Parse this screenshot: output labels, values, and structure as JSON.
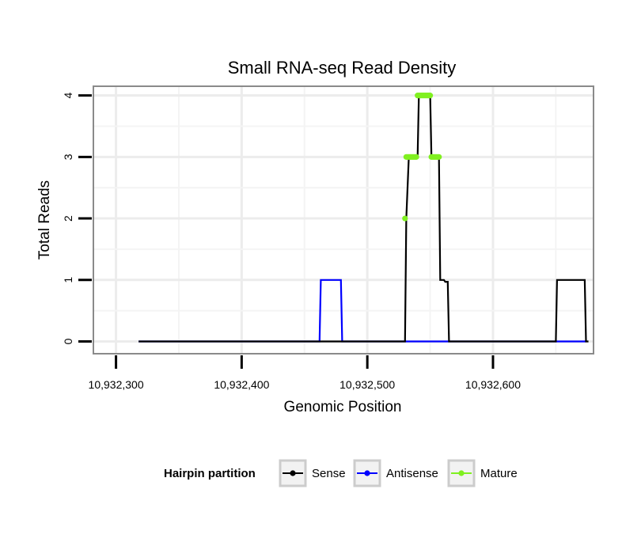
{
  "chart_data": {
    "type": "line",
    "title": "Small RNA-seq Read Density",
    "xlabel": "Genomic Position",
    "ylabel": "Total Reads",
    "xlim": [
      10932282,
      10932680
    ],
    "ylim": [
      -0.2,
      4.15
    ],
    "x_ticks": [
      10932300,
      10932400,
      10932500,
      10932600
    ],
    "x_tick_labels": [
      "10,932,300",
      "10,932,400",
      "10,932,500",
      "10,932,600"
    ],
    "x_minor_gridlines": [
      10932350,
      10932450,
      10932550,
      10932650
    ],
    "y_ticks": [
      0,
      1,
      2,
      3,
      4
    ],
    "y_tick_labels": [
      "0",
      "1",
      "2",
      "3",
      "4"
    ],
    "y_minor_gridlines": [
      0.5,
      1.5,
      2.5,
      3.5
    ],
    "grid": true,
    "legend": {
      "title": "Hairpin partition",
      "position": "bottom",
      "entries": [
        "Sense",
        "Antisense",
        "Mature"
      ]
    },
    "series": [
      {
        "name": "Sense",
        "color": "#000000",
        "style": "line",
        "x": [
          10932318,
          10932530,
          10932531,
          10932533,
          10932540,
          10932541,
          10932550,
          10932551,
          10932557,
          10932558,
          10932561,
          10932562,
          10932564,
          10932565,
          10932650,
          10932651,
          10932673,
          10932674,
          10932676
        ],
        "y": [
          0,
          0,
          2,
          3,
          3,
          4,
          4,
          3,
          3,
          1,
          1,
          0.97,
          0.97,
          0,
          0,
          1,
          1,
          0,
          0
        ]
      },
      {
        "name": "Antisense",
        "color": "#0000ff",
        "style": "line",
        "x": [
          10932318,
          10932462,
          10932463,
          10932479,
          10932480,
          10932530,
          10932565,
          10932650,
          10932674
        ],
        "y": [
          0,
          0,
          1,
          1,
          0,
          0,
          0,
          0,
          0
        ]
      },
      {
        "name": "Mature",
        "color": "#80f020",
        "style": "points",
        "x": [
          10932530,
          10932531,
          10932532,
          10932533,
          10932534,
          10932535,
          10932536,
          10932537,
          10932538,
          10932539,
          10932540,
          10932541,
          10932542,
          10932543,
          10932544,
          10932545,
          10932546,
          10932547,
          10932548,
          10932549,
          10932550,
          10932551,
          10932552,
          10932553,
          10932554,
          10932555,
          10932556,
          10932557
        ],
        "y": [
          2,
          3,
          3,
          3,
          3,
          3,
          3,
          3,
          3,
          3,
          4,
          4,
          4,
          4,
          4,
          4,
          4,
          4,
          4,
          4,
          4,
          3,
          3,
          3,
          3,
          3,
          3,
          3
        ]
      }
    ]
  }
}
